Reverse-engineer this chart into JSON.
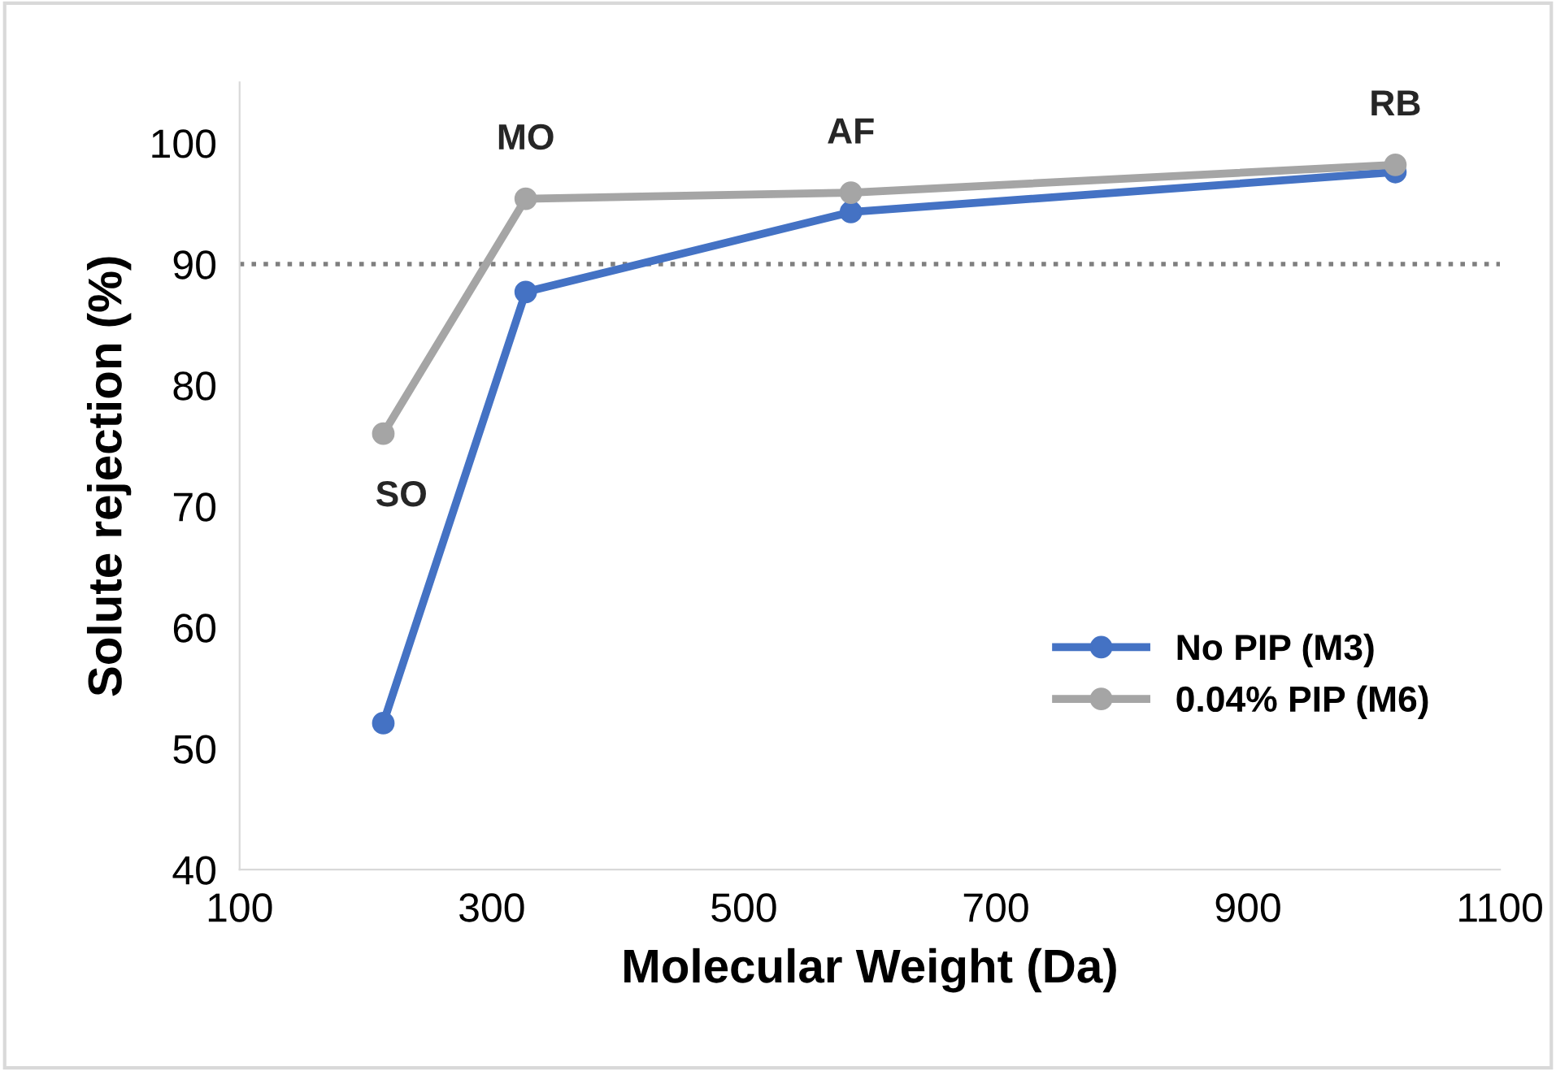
{
  "chart_data": {
    "type": "line",
    "xlabel": "Molecular Weight (Da)",
    "ylabel": "Solute rejection (%)",
    "xlim": [
      100,
      1100
    ],
    "xticks": [
      100,
      300,
      500,
      700,
      900,
      1100
    ],
    "ylim": [
      40,
      105
    ],
    "yticks": [
      40,
      50,
      60,
      70,
      80,
      90,
      100
    ],
    "x": [
      214,
      327,
      585,
      1017
    ],
    "series": [
      {
        "name": "No PIP (M3)",
        "color": "#4472c4",
        "values": [
          52.1,
          87.7,
          94.3,
          97.6
        ]
      },
      {
        "name": "0.04% PIP (M6)",
        "color": "#a5a5a5",
        "values": [
          76.0,
          95.4,
          95.9,
          98.2
        ]
      }
    ],
    "marker": "circle",
    "line_style": "solid",
    "grid": false,
    "legend": "bottom right",
    "ref_lines": [
      {
        "axis": "y",
        "value": 90,
        "label": null,
        "color": "#7f7f7f",
        "line_style": "dotted"
      }
    ],
    "annotations": [
      {
        "text": "SO",
        "x": 214,
        "y": 76.0
      },
      {
        "text": "MO",
        "x": 327,
        "y": 95.4
      },
      {
        "text": "AF",
        "x": 585,
        "y": 95.9
      },
      {
        "text": "RB",
        "x": 1017,
        "y": 98.2
      }
    ]
  }
}
